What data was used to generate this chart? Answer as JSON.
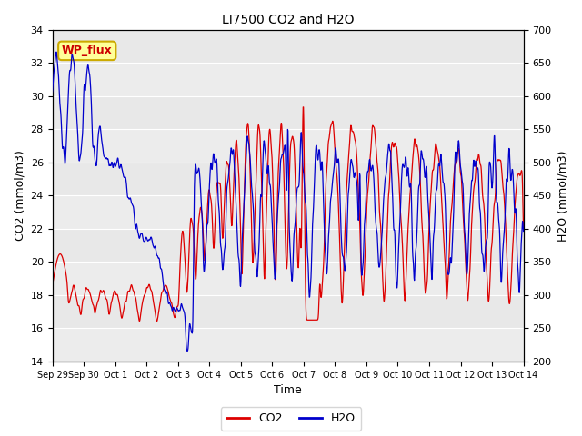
{
  "title": "LI7500 CO2 and H2O",
  "xlabel": "Time",
  "ylabel_left": "CO2 (mmol/m3)",
  "ylabel_right": "H2O (mmol/m3)",
  "ylim_left": [
    14,
    34
  ],
  "ylim_right": [
    200,
    700
  ],
  "plot_bg_color": "#e8e8e8",
  "band_color": "#d8d8d8",
  "annotation_text": "WP_flux",
  "annotation_box_color": "#ffff99",
  "annotation_border_color": "#ccaa00",
  "annotation_text_color": "#cc0000",
  "line_co2_color": "#dd0000",
  "line_h2o_color": "#0000cc",
  "legend_co2": "CO2",
  "legend_h2o": "H2O",
  "xtick_labels": [
    "Sep 29",
    "Sep 30",
    "Oct 1",
    "Oct 2",
    "Oct 3",
    "Oct 4",
    "Oct 5",
    "Oct 6",
    "Oct 7",
    "Oct 8",
    "Oct 9",
    "Oct 10",
    "Oct 11",
    "Oct 12",
    "Oct 13",
    "Oct 14"
  ],
  "figsize": [
    6.4,
    4.8
  ],
  "dpi": 100
}
